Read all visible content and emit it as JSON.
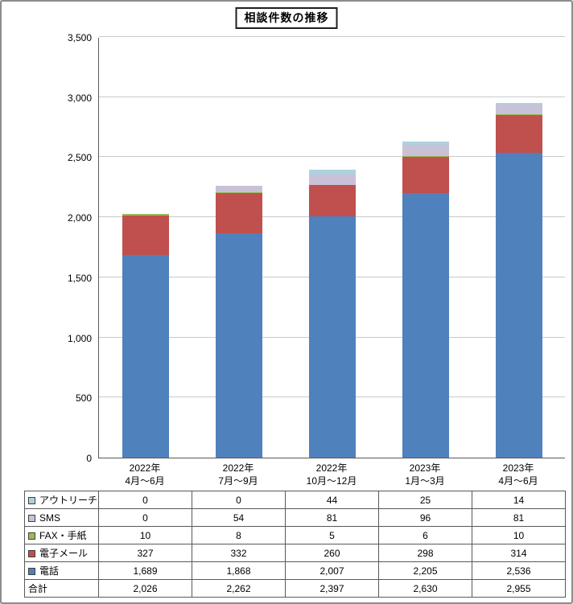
{
  "chart_data": {
    "type": "bar",
    "stacked": true,
    "title": "相談件数の推移",
    "categories": [
      [
        "2022年",
        "4月～6月"
      ],
      [
        "2022年",
        "7月～9月"
      ],
      [
        "2022年",
        "10月～12月"
      ],
      [
        "2023年",
        "1月～3月"
      ],
      [
        "2023年",
        "4月～6月"
      ]
    ],
    "series": [
      {
        "key": "outreach",
        "name": "アウトリーチ",
        "color": "#add2de",
        "values": [
          0,
          0,
          44,
          25,
          14
        ]
      },
      {
        "key": "sms",
        "name": "SMS",
        "color": "#c9c1d8",
        "values": [
          0,
          54,
          81,
          96,
          81
        ]
      },
      {
        "key": "fax-letter",
        "name": "FAX・手紙",
        "color": "#9bbb59",
        "values": [
          10,
          8,
          5,
          6,
          10
        ]
      },
      {
        "key": "email",
        "name": "電子メール",
        "color": "#c0504d",
        "values": [
          327,
          332,
          260,
          298,
          314
        ]
      },
      {
        "key": "phone",
        "name": "電話",
        "color": "#4f81bd",
        "values": [
          1689,
          1868,
          2007,
          2205,
          2536
        ]
      }
    ],
    "totals": {
      "key": "total",
      "label": "合計",
      "values": [
        2026,
        2262,
        2397,
        2630,
        2955
      ]
    },
    "ylim": [
      0,
      3500
    ],
    "ytick_step": 500,
    "ytick_labels": [
      "0",
      "500",
      "1,000",
      "1,500",
      "2,000",
      "2,500",
      "3,000",
      "3,500"
    ],
    "grid": true,
    "legend_position": "data-table-left",
    "colors": {
      "axis": "#595959",
      "gridline": "#c9c9c9",
      "table_border": "#595959"
    }
  }
}
